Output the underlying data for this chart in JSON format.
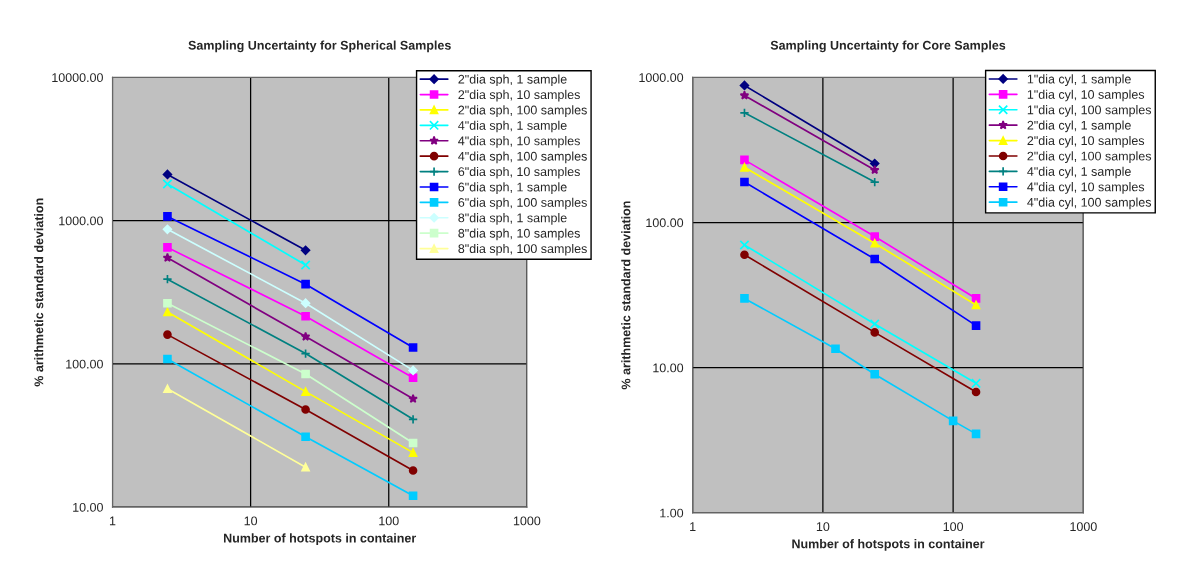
{
  "chart_data": [
    {
      "type": "line",
      "title": "Sampling Uncertainty for Spherical Samples",
      "xlabel": "Number of hotspots in container",
      "ylabel": "% arithmetic standard deviation",
      "log": "xy",
      "x": [
        2.5,
        25,
        150
      ],
      "xlim": [
        1,
        1000
      ],
      "xticks": [
        1,
        10,
        100,
        1000
      ],
      "ylim": [
        10,
        10000
      ],
      "yticks": [
        {
          "value": 10,
          "label": "10.00"
        },
        {
          "value": 100,
          "label": "100.00"
        },
        {
          "value": 1000,
          "label": "1000.00"
        },
        {
          "value": 10000,
          "label": "10000.00"
        }
      ],
      "grid": true,
      "legend": "top right",
      "series": [
        {
          "name": "2\"dia sph, 1 sample",
          "color": "#000080",
          "marker": "diamond",
          "values": [
            2100,
            620,
            null
          ]
        },
        {
          "name": "2\"dia sph, 10 samples",
          "color": "#ff00ff",
          "marker": "square",
          "values": [
            650,
            215,
            80
          ]
        },
        {
          "name": "2\"dia sph, 100 samples",
          "color": "#ffff00",
          "marker": "triangle",
          "values": [
            230,
            64,
            24
          ]
        },
        {
          "name": "4\"dia sph, 1 sample",
          "color": "#00ffff",
          "marker": "cross",
          "values": [
            1800,
            490,
            null
          ]
        },
        {
          "name": "4\"dia sph, 10 samples",
          "color": "#800080",
          "marker": "star",
          "values": [
            550,
            155,
            57
          ]
        },
        {
          "name": "4\"dia sph, 100 samples",
          "color": "#800000",
          "marker": "circle",
          "values": [
            160,
            48,
            18
          ]
        },
        {
          "name": "6\"dia sph, 10 samples",
          "color": "#008080",
          "marker": "plus",
          "values": [
            390,
            118,
            41
          ]
        },
        {
          "name": "6\"dia sph, 1 sample",
          "color": "#0000ff",
          "marker": "square",
          "values": [
            1070,
            360,
            130
          ]
        },
        {
          "name": "6\"dia sph, 100 samples",
          "color": "#00ccff",
          "marker": "square",
          "values": [
            108,
            31,
            12
          ]
        },
        {
          "name": "8\"dia sph, 1 sample",
          "color": "#ccffff",
          "marker": "diamond",
          "values": [
            870,
            265,
            90
          ]
        },
        {
          "name": "8\"dia sph, 10 samples",
          "color": "#ccffcc",
          "marker": "square",
          "values": [
            265,
            85,
            28
          ]
        },
        {
          "name": "8\"dia sph, 100 samples",
          "color": "#ffff99",
          "marker": "triangle",
          "values": [
            67,
            19,
            null
          ]
        }
      ]
    },
    {
      "type": "line",
      "title": "Sampling Uncertainty for Core Samples",
      "xlabel": "Number of hotspots in container",
      "ylabel": "% arithmetic standard deviation",
      "log": "xy",
      "x": [
        2.5,
        25,
        150
      ],
      "xlim": [
        1,
        1000
      ],
      "xticks": [
        1,
        10,
        100,
        1000
      ],
      "ylim": [
        1,
        1000
      ],
      "yticks": [
        {
          "value": 1,
          "label": "1.00"
        },
        {
          "value": 10,
          "label": "10.00"
        },
        {
          "value": 100,
          "label": "100.00"
        },
        {
          "value": 1000,
          "label": "1000.00"
        }
      ],
      "grid": true,
      "legend": "top right",
      "series": [
        {
          "name": "1\"dia cyl, 1 sample",
          "color": "#000080",
          "marker": "diamond",
          "values": [
            880,
            255,
            null
          ]
        },
        {
          "name": "1\"dia cyl, 10 samples",
          "color": "#ff00ff",
          "marker": "square",
          "values": [
            270,
            80,
            30
          ]
        },
        {
          "name": "1\"dia cyl, 100 samples",
          "color": "#00ffff",
          "marker": "cross",
          "values": [
            70,
            20,
            7.8
          ]
        },
        {
          "name": "2\"dia cyl, 1 sample",
          "color": "#800080",
          "marker": "star",
          "values": [
            750,
            230,
            null
          ]
        },
        {
          "name": "2\"dia cyl, 10 samples",
          "color": "#ffff00",
          "marker": "triangle",
          "values": [
            240,
            72,
            27
          ]
        },
        {
          "name": "2\"dia cyl, 100 samples",
          "color": "#800000",
          "marker": "circle",
          "values": [
            60,
            17.5,
            6.8
          ]
        },
        {
          "name": "4\"dia cyl, 1 sample",
          "color": "#008080",
          "marker": "plus",
          "values": [
            570,
            190,
            null
          ]
        },
        {
          "name": "4\"dia cyl, 10 samples",
          "color": "#0000ff",
          "marker": "square",
          "values": [
            190,
            56,
            19.5
          ]
        },
        {
          "name": "4\"dia cyl, 100 samples",
          "color": "#00ccff",
          "marker": "square",
          "x": [
            2.5,
            12.5,
            25,
            100,
            150
          ],
          "values": [
            30,
            13.5,
            9,
            4.3,
            3.5
          ]
        }
      ]
    }
  ]
}
